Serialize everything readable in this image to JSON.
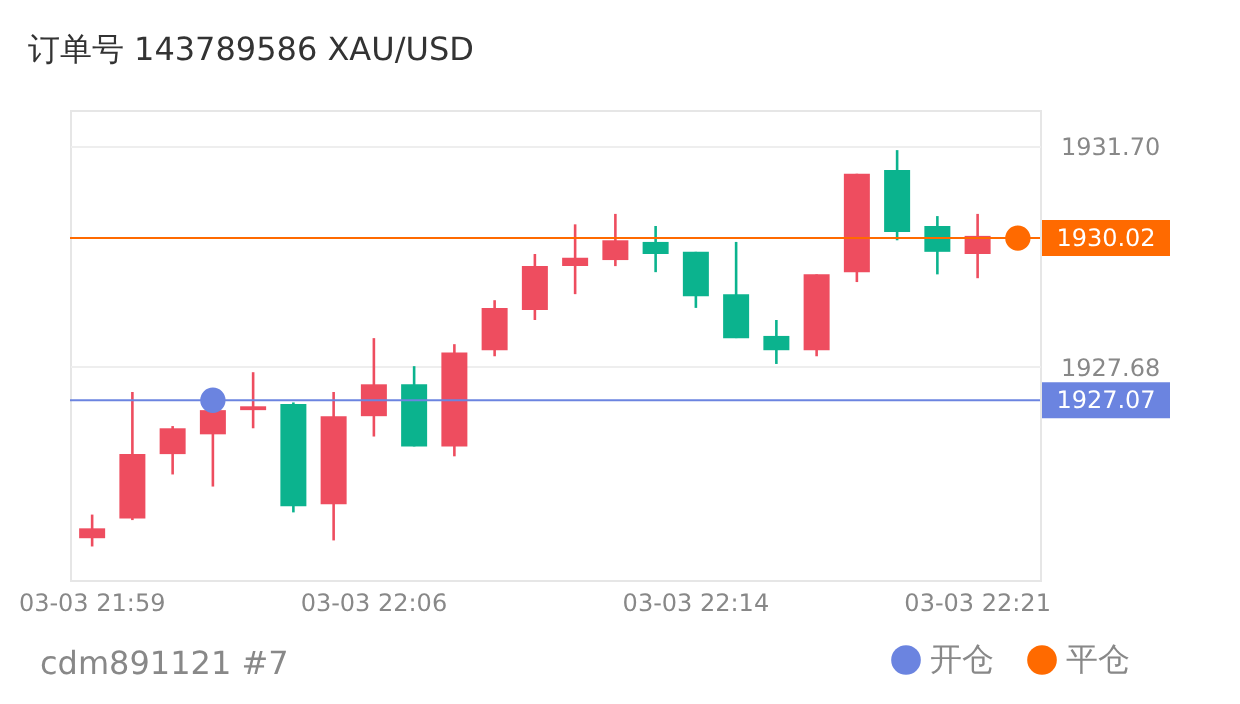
{
  "chart_data": {
    "type": "candlestick",
    "title": "订单号 143789586    XAU/USD",
    "categories": [
      "03-03 21:59",
      null,
      null,
      null,
      null,
      null,
      null,
      "03-03 22:06",
      null,
      null,
      null,
      null,
      null,
      null,
      null,
      "03-03 22:14",
      null,
      null,
      null,
      null,
      null,
      null,
      "03-03 22:21",
      null
    ],
    "ohlc": [
      [
        1924.56,
        1924.99,
        1924.41,
        1924.74
      ],
      [
        1924.92,
        1927.22,
        1924.89,
        1926.09
      ],
      [
        1926.09,
        1926.6,
        1925.72,
        1926.56
      ],
      [
        1926.45,
        1926.89,
        1925.5,
        1926.89
      ],
      [
        1926.89,
        1927.58,
        1926.56,
        1926.96
      ],
      [
        1927.0,
        1927.03,
        1925.03,
        1925.14
      ],
      [
        1925.18,
        1927.22,
        1924.52,
        1926.78
      ],
      [
        1926.78,
        1928.2,
        1926.41,
        1927.36
      ],
      [
        1927.36,
        1927.69,
        1926.23,
        1926.23
      ],
      [
        1926.23,
        1928.09,
        1926.05,
        1927.94
      ],
      [
        1927.98,
        1928.89,
        1927.87,
        1928.75
      ],
      [
        1928.71,
        1929.73,
        1928.53,
        1929.51
      ],
      [
        1929.51,
        1930.27,
        1929.0,
        1929.66
      ],
      [
        1929.62,
        1930.46,
        1929.51,
        1929.98
      ],
      [
        1929.95,
        1930.24,
        1929.4,
        1929.73
      ],
      [
        1929.77,
        1929.77,
        1928.75,
        1928.96
      ],
      [
        1929.0,
        1929.95,
        1928.2,
        1928.2
      ],
      [
        1928.24,
        1928.53,
        1927.73,
        1927.98
      ],
      [
        1927.98,
        1929.36,
        1927.87,
        1929.36
      ],
      [
        1929.4,
        1931.19,
        1929.22,
        1931.19
      ],
      [
        1931.26,
        1931.62,
        1929.98,
        1930.13
      ],
      [
        1930.24,
        1930.42,
        1929.36,
        1929.77
      ],
      [
        1929.73,
        1930.46,
        1929.29,
        1930.06
      ],
      null
    ],
    "colors": [
      "#ee4d5f",
      "#ee4d5f",
      "#ee4d5f",
      "#ee4d5f",
      "#ee4d5f",
      "#0bb38e",
      "#ee4d5f",
      "#ee4d5f",
      "#0bb38e",
      "#ee4d5f",
      "#ee4d5f",
      "#ee4d5f",
      "#ee4d5f",
      "#ee4d5f",
      "#0bb38e",
      "#0bb38e",
      "#0bb38e",
      "#0bb38e",
      "#ee4d5f",
      "#ee4d5f",
      "#0bb38e",
      "#0bb38e",
      "#ee4d5f",
      "#ee4d5f"
    ],
    "series": [
      {
        "name": "开仓",
        "type": "scatter",
        "color": "#6b84e0",
        "values": [
          null,
          null,
          null,
          1927.07,
          null,
          null,
          null,
          null,
          null,
          null,
          null,
          null,
          null,
          null,
          null,
          null,
          null,
          null,
          null,
          null,
          null,
          null,
          null,
          null
        ]
      },
      {
        "name": "平仓",
        "type": "scatter",
        "color": "#ff6a00",
        "values": [
          null,
          null,
          null,
          null,
          null,
          null,
          null,
          null,
          null,
          null,
          null,
          null,
          null,
          null,
          null,
          null,
          null,
          null,
          null,
          null,
          null,
          null,
          null,
          1930.02
        ]
      }
    ],
    "ylim": [
      1923.8,
      1932.35
    ],
    "yticks": [
      {
        "value": 1927.68,
        "label": "1927.68"
      },
      {
        "value": 1931.7,
        "label": "1931.70"
      }
    ],
    "ref_lines": [
      {
        "axis": "y",
        "value": 1930.02,
        "label": "1930.02",
        "color": "#ff6a00"
      },
      {
        "axis": "y",
        "value": 1927.07,
        "label": "1927.07",
        "color": "#6b84e0"
      }
    ],
    "grid": "y",
    "legend": "bottom right",
    "marker": "circle",
    "annotations": [
      "cdm891121 #7"
    ]
  }
}
